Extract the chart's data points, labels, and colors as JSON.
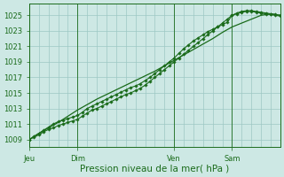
{
  "background_color": "#cde8e4",
  "plot_bg_color": "#cde8e4",
  "grid_color": "#9dc8c4",
  "line_color": "#1a6b1a",
  "marker_color": "#1a6b1a",
  "ylim": [
    1008.0,
    1026.5
  ],
  "yticks": [
    1009,
    1011,
    1013,
    1015,
    1017,
    1019,
    1021,
    1023,
    1025
  ],
  "xlabel": "Pression niveau de la mer( hPa )",
  "xlabel_color": "#1a6b1a",
  "xlabel_fontsize": 7.5,
  "tick_fontsize": 6,
  "tick_color": "#1a6b1a",
  "day_labels": [
    "Jeu",
    "Dim",
    "Ven",
    "Sam"
  ],
  "day_positions": [
    0,
    60,
    180,
    252
  ],
  "vline_positions": [
    0,
    60,
    180,
    252
  ],
  "total_points": 312,
  "line1_x": [
    0,
    6,
    12,
    18,
    24,
    30,
    36,
    42,
    48,
    54,
    60,
    66,
    72,
    78,
    84,
    90,
    96,
    102,
    108,
    114,
    120,
    126,
    132,
    138,
    144,
    150,
    156,
    162,
    168,
    174,
    180,
    186,
    192,
    198,
    204,
    210,
    216,
    222,
    228,
    234,
    240,
    246,
    252,
    258,
    264,
    270,
    276,
    282,
    288,
    294,
    300,
    306,
    312
  ],
  "line1_y": [
    1009.0,
    1009.3,
    1009.6,
    1010.0,
    1010.3,
    1010.5,
    1010.8,
    1011.0,
    1011.2,
    1011.4,
    1011.6,
    1012.0,
    1012.4,
    1012.8,
    1013.0,
    1013.3,
    1013.6,
    1013.9,
    1014.2,
    1014.5,
    1014.8,
    1015.0,
    1015.3,
    1015.6,
    1016.0,
    1016.5,
    1017.0,
    1017.5,
    1018.0,
    1018.5,
    1019.0,
    1019.5,
    1020.0,
    1020.5,
    1021.0,
    1021.5,
    1022.0,
    1022.5,
    1023.0,
    1023.5,
    1024.0,
    1024.5,
    1025.0,
    1025.3,
    1025.5,
    1025.6,
    1025.6,
    1025.5,
    1025.4,
    1025.3,
    1025.2,
    1025.1,
    1025.0
  ],
  "line2_x": [
    0,
    6,
    12,
    18,
    24,
    30,
    36,
    42,
    48,
    54,
    60,
    66,
    72,
    78,
    84,
    90,
    96,
    102,
    108,
    114,
    120,
    126,
    132,
    138,
    144,
    150,
    156,
    162,
    168,
    174,
    180,
    186,
    192,
    198,
    204,
    210,
    216,
    222,
    228,
    234,
    240,
    246,
    252,
    258,
    264,
    270,
    276,
    282,
    288,
    294,
    300,
    306,
    312
  ],
  "line2_y": [
    1009.0,
    1009.4,
    1009.8,
    1010.2,
    1010.6,
    1011.0,
    1011.3,
    1011.5,
    1011.7,
    1011.9,
    1012.1,
    1012.5,
    1013.0,
    1013.3,
    1013.6,
    1013.9,
    1014.2,
    1014.5,
    1014.8,
    1015.1,
    1015.4,
    1015.7,
    1015.9,
    1016.2,
    1016.6,
    1017.0,
    1017.5,
    1018.0,
    1018.5,
    1019.0,
    1019.5,
    1020.1,
    1020.7,
    1021.2,
    1021.7,
    1022.1,
    1022.5,
    1022.9,
    1023.2,
    1023.5,
    1023.8,
    1024.1,
    1025.0,
    1025.2,
    1025.4,
    1025.5,
    1025.5,
    1025.4,
    1025.3,
    1025.2,
    1025.1,
    1025.0,
    1024.9
  ],
  "line3_x": [
    0,
    12,
    24,
    36,
    48,
    60,
    72,
    84,
    96,
    108,
    120,
    132,
    144,
    156,
    168,
    180,
    192,
    204,
    216,
    228,
    240,
    252,
    264,
    276,
    288,
    300,
    312
  ],
  "line3_y": [
    1009.0,
    1009.8,
    1010.5,
    1011.2,
    1012.0,
    1012.8,
    1013.5,
    1014.2,
    1014.8,
    1015.4,
    1016.0,
    1016.6,
    1017.2,
    1017.8,
    1018.5,
    1019.2,
    1019.9,
    1020.6,
    1021.3,
    1022.0,
    1022.8,
    1023.5,
    1024.0,
    1024.5,
    1025.0,
    1025.2,
    1025.0
  ],
  "vgrid_step": 12
}
